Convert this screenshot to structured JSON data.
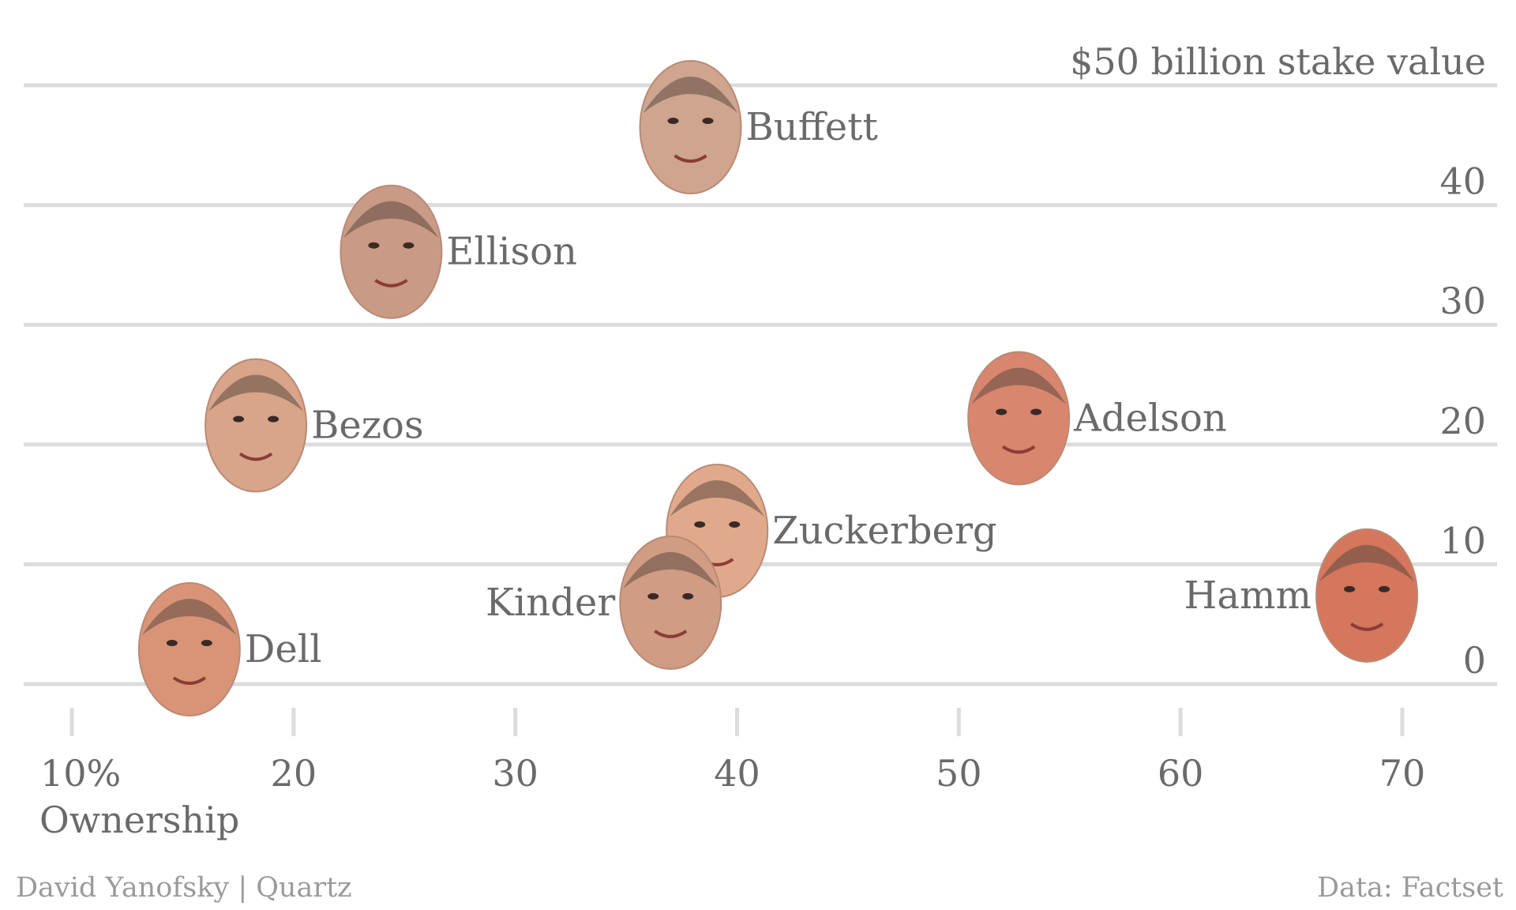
{
  "chart_data": {
    "type": "scatter",
    "title": "",
    "xlabel": "Ownership",
    "ylabel": "",
    "x_ticks": [
      "10%",
      "20",
      "30",
      "40",
      "50",
      "60",
      "70"
    ],
    "x_tick_values": [
      10,
      20,
      30,
      40,
      50,
      60,
      70
    ],
    "y_ticks": [
      "0",
      "10",
      "20",
      "30",
      "40",
      "$50 billion stake value"
    ],
    "y_tick_values": [
      0,
      10,
      20,
      30,
      40,
      50
    ],
    "xlim": [
      8,
      74
    ],
    "ylim": [
      0,
      50
    ],
    "grid": "horizontal",
    "points": [
      {
        "label": "Buffett",
        "x": 37.9,
        "y": 46.5,
        "color": "#cfa58f",
        "label_side": "right"
      },
      {
        "label": "Ellison",
        "x": 24.4,
        "y": 36.1,
        "color": "#c99a85",
        "label_side": "right"
      },
      {
        "label": "Bezos",
        "x": 18.3,
        "y": 21.6,
        "color": "#d8a48a",
        "label_side": "right"
      },
      {
        "label": "Adelson",
        "x": 52.7,
        "y": 22.2,
        "color": "#d9866e",
        "label_side": "right"
      },
      {
        "label": "Zuckerberg",
        "x": 39.1,
        "y": 12.8,
        "color": "#e1a98b",
        "label_side": "right"
      },
      {
        "label": "Kinder",
        "x": 37.0,
        "y": 6.8,
        "color": "#d09c84",
        "label_side": "left"
      },
      {
        "label": "Hamm",
        "x": 68.4,
        "y": 7.4,
        "color": "#d4775d",
        "label_side": "left"
      },
      {
        "label": "Dell",
        "x": 15.3,
        "y": 2.9,
        "color": "#d99478",
        "label_side": "right"
      }
    ]
  },
  "credits": {
    "left": "David Yanofsky | Quartz",
    "right": "Data: Factset"
  }
}
